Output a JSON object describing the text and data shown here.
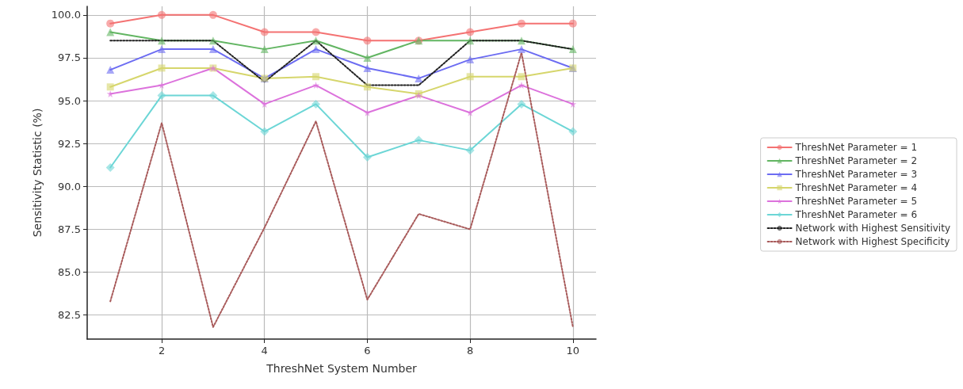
{
  "chart_data": {
    "type": "line",
    "xlabel": "ThreshNet System Number",
    "ylabel": "Sensitivity Statistic (%)",
    "x": [
      1,
      2,
      3,
      4,
      5,
      6,
      7,
      8,
      9,
      10
    ],
    "xlim": [
      0.55,
      10.45
    ],
    "xticks": [
      2,
      4,
      6,
      8,
      10
    ],
    "ylim": [
      81.1,
      100.5
    ],
    "yticks": [
      {
        "value": 82.5,
        "label": "82.5"
      },
      {
        "value": 85,
        "label": "85.0"
      },
      {
        "value": 87.5,
        "label": "87.5"
      },
      {
        "value": 90,
        "label": "90.0"
      },
      {
        "value": 92.5,
        "label": "92.5"
      },
      {
        "value": 95,
        "label": "95.0"
      },
      {
        "value": 97.5,
        "label": "97.5"
      },
      {
        "value": 100,
        "label": "100.0"
      }
    ],
    "grid": true,
    "legend": "right",
    "line_style": "solid",
    "series": [
      {
        "name": "ThreshNet Parameter = 1",
        "color": "#f47272",
        "marker": "circle",
        "values": [
          99.5,
          100,
          100,
          99.0,
          99.0,
          98.5,
          98.5,
          99.0,
          99.5,
          99.5
        ]
      },
      {
        "name": "ThreshNet Parameter = 2",
        "color": "#62b562",
        "marker": "triangle",
        "values": [
          99.0,
          98.5,
          98.5,
          98.0,
          98.5,
          97.5,
          98.5,
          98.5,
          98.5,
          98.0
        ]
      },
      {
        "name": "ThreshNet Parameter = 3",
        "color": "#6c6cf2",
        "marker": "triangle",
        "values": [
          96.8,
          98.0,
          98.0,
          96.3,
          98.0,
          96.9,
          96.3,
          97.4,
          98.0,
          96.9
        ]
      },
      {
        "name": "ThreshNet Parameter = 4",
        "color": "#d6d66c",
        "marker": "square",
        "values": [
          95.8,
          96.9,
          96.9,
          96.3,
          96.4,
          95.8,
          95.4,
          96.4,
          96.4,
          96.9
        ]
      },
      {
        "name": "ThreshNet Parameter = 5",
        "color": "#dc72dc",
        "marker": "star",
        "values": [
          95.4,
          95.9,
          96.9,
          94.8,
          95.9,
          94.3,
          95.3,
          94.3,
          95.9,
          94.8
        ]
      },
      {
        "name": "ThreshNet Parameter = 6",
        "color": "#6cd6d6",
        "marker": "diamond",
        "values": [
          91.1,
          95.3,
          95.3,
          93.2,
          94.8,
          91.7,
          92.7,
          92.1,
          94.8,
          93.2
        ]
      },
      {
        "name": "Network with Highest Sensitivity",
        "color": "#222222",
        "marker": "none",
        "line_style": "dotted",
        "values": [
          98.5,
          98.5,
          98.5,
          96.1,
          98.5,
          95.9,
          95.9,
          98.5,
          98.5,
          98.0
        ]
      },
      {
        "name": "Network with Highest Specificity",
        "color": "#a85a5a",
        "marker": "none",
        "line_style": "dotted",
        "values": [
          83.3,
          93.7,
          81.8,
          87.6,
          93.8,
          83.4,
          88.4,
          87.5,
          97.8,
          81.8
        ]
      }
    ]
  }
}
